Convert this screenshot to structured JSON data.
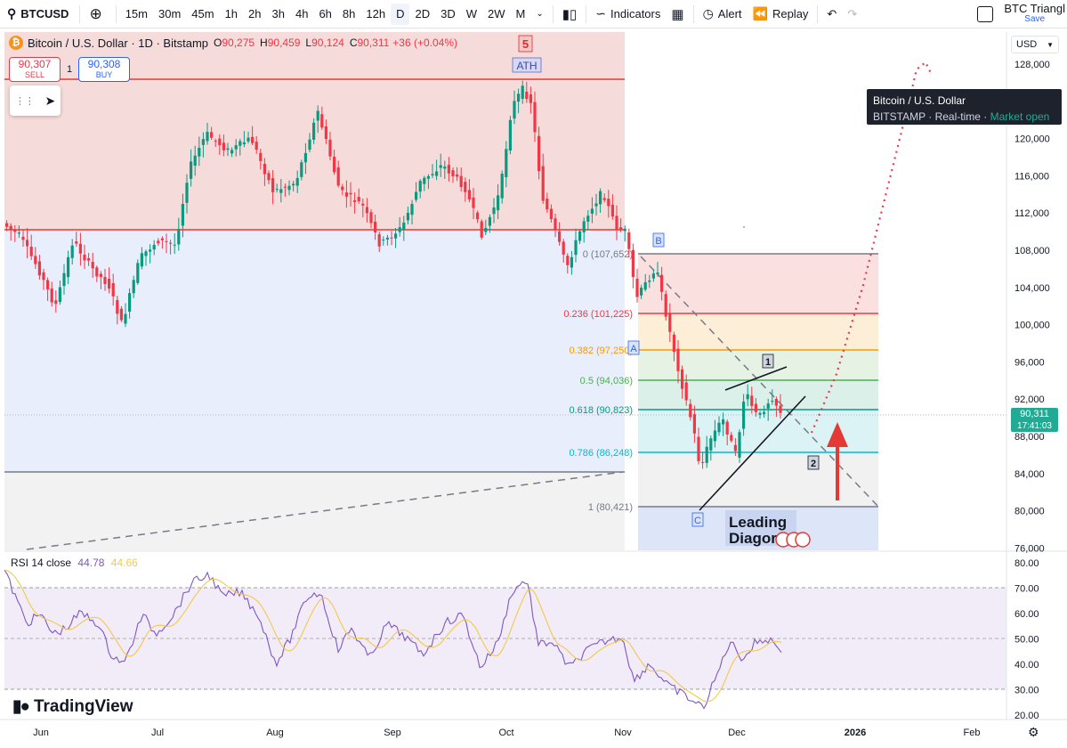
{
  "toolbar": {
    "symbol": "BTCUSD",
    "intervals": [
      "15m",
      "30m",
      "45m",
      "1h",
      "2h",
      "3h",
      "4h",
      "6h",
      "8h",
      "12h",
      "D",
      "2D",
      "3D",
      "W",
      "2W",
      "M"
    ],
    "active_interval": "D",
    "indicators_label": "Indicators",
    "alert_label": "Alert",
    "replay_label": "Replay",
    "layout_name": "BTC Triangl",
    "layout_save": "Save"
  },
  "legend": {
    "title": "Bitcoin / U.S. Dollar · 1D · Bitstamp",
    "open_key": "O",
    "open": "90,275",
    "high_key": "H",
    "high": "90,459",
    "low_key": "L",
    "low": "90,124",
    "close_key": "C",
    "close": "90,311",
    "change": "+36 (+0.04%)"
  },
  "trade": {
    "sell_price": "90,307",
    "sell_label": "SELL",
    "qty": "1",
    "buy_price": "90,308",
    "buy_label": "BUY"
  },
  "tooltip": {
    "name": "Bitcoin / U.S. Dollar",
    "exchange": "BITSTAMP",
    "feed": "Real-time",
    "status": "Market open"
  },
  "currency": "USD",
  "price_scale": [
    "128,000",
    "124,000",
    "120,000",
    "116,000",
    "112,000",
    "108,000",
    "104,000",
    "100,000",
    "96,000",
    "92,000",
    "88,000",
    "84,000",
    "80,000",
    "76,000"
  ],
  "current_price": {
    "price": "90,311",
    "countdown": "17:41:03"
  },
  "fib_levels": [
    {
      "ratio": "0",
      "value": "107,652",
      "label": "0 (107,652)",
      "color": "#787b86"
    },
    {
      "ratio": "0.236",
      "value": "101,225",
      "label": "0.236 (101,225)",
      "color": "#f23645"
    },
    {
      "ratio": "0.382",
      "value": "97,250",
      "label": "0.382 (97,250)",
      "color": "#ff9800"
    },
    {
      "ratio": "0.5",
      "value": "94,036",
      "label": "0.5 (94,036)",
      "color": "#4caf50"
    },
    {
      "ratio": "0.618",
      "value": "90,823",
      "label": "0.618 (90,823)",
      "color": "#089981"
    },
    {
      "ratio": "0.786",
      "value": "86,248",
      "label": "0.786 (86,248)",
      "color": "#00bcd4"
    },
    {
      "ratio": "1",
      "value": "80,421",
      "label": "1 (80,421)",
      "color": "#787b86"
    }
  ],
  "wave_labels": {
    "five": "5",
    "ath": "ATH",
    "a": "A",
    "b": "B",
    "c": "C",
    "one": "1",
    "two": "2"
  },
  "annotation": {
    "line1": "Leading",
    "line2": "Diagor"
  },
  "rsi": {
    "title": "RSI 14 close",
    "value1": "44.78",
    "value2": "44.66",
    "scale": [
      "80.00",
      "70.00",
      "60.00",
      "50.00",
      "40.00",
      "30.00",
      "20.00"
    ]
  },
  "time_axis": [
    "Jun",
    "Jul",
    "Aug",
    "Sep",
    "Oct",
    "Nov",
    "Dec",
    "2026",
    "Feb"
  ],
  "brand": "TradingView",
  "colors": {
    "up": "#089981",
    "down": "#f23645",
    "rsi": "#7e57c2",
    "rsi_ma": "#f7c948",
    "accent": "#2962ff"
  }
}
